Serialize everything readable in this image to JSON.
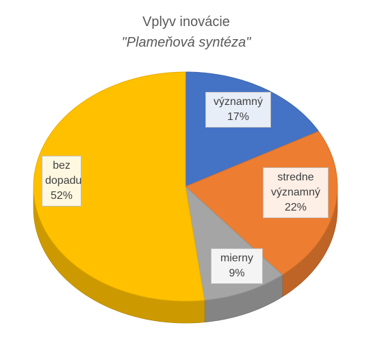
{
  "chart_data": {
    "type": "pie",
    "title": "Vplyv inovácie",
    "subtitle": "\"Plameňová syntéza\"",
    "categories": [
      "významný",
      "stredne významný",
      "mierny",
      "bez dopadu"
    ],
    "values": [
      17,
      22,
      9,
      52
    ],
    "value_labels": [
      "17%",
      "22%",
      "9%",
      "52%"
    ],
    "colors": [
      "#4472c4",
      "#ed7d31",
      "#a5a5a5",
      "#ffc000"
    ]
  }
}
